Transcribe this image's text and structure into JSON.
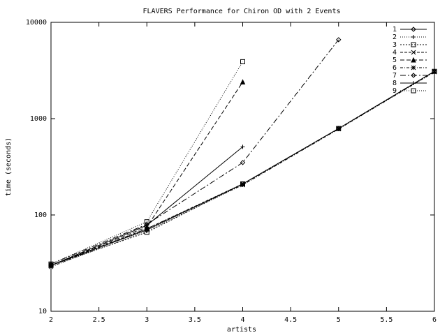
{
  "chart_data": {
    "type": "line",
    "title": "FLAVERS Performance for Chiron OD with 2 Events",
    "x_label": "artists",
    "y_label": "time (seconds)",
    "x": [
      2,
      3,
      4,
      5,
      6
    ],
    "xlim": [
      2,
      6
    ],
    "xticks": [
      2,
      2.5,
      3,
      3.5,
      4,
      4.5,
      5,
      5.5,
      6
    ],
    "ylim": [
      10,
      10000
    ],
    "yticks": [
      10,
      100,
      1000,
      10000
    ],
    "y_scale": "log",
    "grid": false,
    "legend": "top-right",
    "series": [
      {
        "name": "1",
        "color": "#000000",
        "dash": "none",
        "marker": "diamond",
        "values": [
          30,
          70,
          210,
          790,
          3100
        ]
      },
      {
        "name": "2",
        "color": "#000000",
        "dash": "1,2",
        "marker": "plus",
        "values": [
          29,
          68,
          205,
          780,
          3050
        ]
      },
      {
        "name": "3",
        "color": "#000000",
        "dash": "2,2",
        "marker": "square",
        "values": [
          30,
          66,
          210,
          790,
          3100
        ]
      },
      {
        "name": "4",
        "color": "#000000",
        "dash": "4,2",
        "marker": "cross",
        "values": [
          30,
          72,
          210,
          790,
          3100
        ]
      },
      {
        "name": "5",
        "color": "#000000",
        "dash": "6,3",
        "marker": "triangle",
        "values": [
          30,
          75,
          2400,
          null,
          null
        ]
      },
      {
        "name": "6",
        "color": "#000000",
        "dash": "4,2,1,2",
        "marker": "star",
        "values": [
          29,
          72,
          205,
          780,
          3050
        ]
      },
      {
        "name": "7",
        "color": "#000000",
        "dash": "8,3,2,3",
        "marker": "diamond",
        "values": [
          31,
          80,
          350,
          6600,
          null
        ]
      },
      {
        "name": "8",
        "color": "#000000",
        "dash": "none",
        "marker": "plus",
        "values": [
          30,
          78,
          510,
          null,
          null
        ]
      },
      {
        "name": "9",
        "color": "#000000",
        "dash": "1,2",
        "marker": "square",
        "values": [
          31,
          85,
          3900,
          null,
          null
        ]
      }
    ]
  }
}
